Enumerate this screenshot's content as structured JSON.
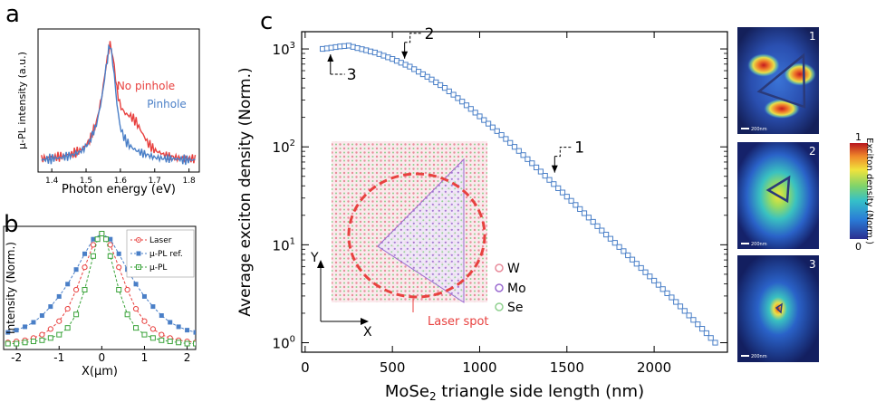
{
  "panel_labels": {
    "a": "a",
    "b": "b",
    "c": "c"
  },
  "chart_data": [
    {
      "panel": "a",
      "type": "line",
      "xlabel": "Photon energy (eV)",
      "ylabel": "µ-PL intensity (a.u.)",
      "xlim": [
        1.36,
        1.83
      ],
      "xticks": [
        "1.4",
        "1.5",
        "1.6",
        "1.7",
        "1.8"
      ],
      "series": [
        {
          "name": "No pinhole",
          "color": "#e8413f",
          "x": [
            1.37,
            1.4,
            1.43,
            1.46,
            1.49,
            1.51,
            1.53,
            1.545,
            1.56,
            1.57,
            1.58,
            1.59,
            1.6,
            1.615,
            1.63,
            1.645,
            1.66,
            1.68,
            1.7,
            1.73,
            1.76,
            1.79,
            1.81
          ],
          "y": [
            0.05,
            0.06,
            0.07,
            0.09,
            0.13,
            0.2,
            0.35,
            0.55,
            0.85,
            1.0,
            0.86,
            0.62,
            0.48,
            0.42,
            0.4,
            0.36,
            0.28,
            0.18,
            0.12,
            0.08,
            0.06,
            0.05,
            0.05
          ]
        },
        {
          "name": "Pinhole",
          "color": "#4a7fc7",
          "x": [
            1.37,
            1.4,
            1.43,
            1.46,
            1.49,
            1.51,
            1.53,
            1.545,
            1.56,
            1.57,
            1.58,
            1.59,
            1.6,
            1.615,
            1.63,
            1.645,
            1.66,
            1.68,
            1.7,
            1.73,
            1.76,
            1.79,
            1.81
          ],
          "y": [
            0.04,
            0.05,
            0.06,
            0.08,
            0.12,
            0.19,
            0.33,
            0.53,
            0.84,
            1.0,
            0.8,
            0.5,
            0.3,
            0.2,
            0.15,
            0.12,
            0.1,
            0.08,
            0.06,
            0.05,
            0.05,
            0.04,
            0.04
          ]
        }
      ]
    },
    {
      "panel": "b",
      "type": "line",
      "xlabel": "X(µm)",
      "ylabel": "Intensity (Norm.)",
      "xlim": [
        -2.3,
        2.2
      ],
      "xticks": [
        "-2",
        "-1",
        "0",
        "1",
        "2"
      ],
      "series": [
        {
          "name": "Laser",
          "color": "#e8413f",
          "marker": "circle-open",
          "x": [
            -2.2,
            -2.0,
            -1.8,
            -1.6,
            -1.4,
            -1.2,
            -1.0,
            -0.8,
            -0.6,
            -0.4,
            -0.2,
            0.0,
            0.2,
            0.4,
            0.6,
            0.8,
            1.0,
            1.2,
            1.4,
            1.6,
            1.8,
            2.0,
            2.2
          ],
          "y": [
            0.03,
            0.04,
            0.05,
            0.07,
            0.1,
            0.15,
            0.22,
            0.33,
            0.5,
            0.7,
            0.9,
            1.0,
            0.9,
            0.7,
            0.5,
            0.33,
            0.22,
            0.15,
            0.1,
            0.07,
            0.05,
            0.04,
            0.03
          ]
        },
        {
          "name": "µ-PL  ref.",
          "color": "#4a7fc7",
          "marker": "square-filled",
          "x": [
            -2.2,
            -2.0,
            -1.8,
            -1.6,
            -1.4,
            -1.2,
            -1.0,
            -0.8,
            -0.6,
            -0.4,
            -0.2,
            0.0,
            0.2,
            0.4,
            0.6,
            0.8,
            1.0,
            1.2,
            1.4,
            1.6,
            1.8,
            2.0,
            2.2
          ],
          "y": [
            0.12,
            0.14,
            0.17,
            0.21,
            0.27,
            0.35,
            0.44,
            0.55,
            0.68,
            0.82,
            0.95,
            1.0,
            0.95,
            0.82,
            0.68,
            0.55,
            0.44,
            0.35,
            0.27,
            0.21,
            0.17,
            0.14,
            0.12
          ]
        },
        {
          "name": "µ-PL",
          "color": "#3aa33a",
          "marker": "square-open",
          "x": [
            -2.2,
            -2.0,
            -1.8,
            -1.6,
            -1.4,
            -1.2,
            -1.0,
            -0.8,
            -0.6,
            -0.4,
            -0.2,
            -0.1,
            0.0,
            0.1,
            0.2,
            0.4,
            0.6,
            0.8,
            1.0,
            1.2,
            1.4,
            1.6,
            1.8,
            2.0,
            2.2
          ],
          "y": [
            0.02,
            0.02,
            0.03,
            0.04,
            0.05,
            0.07,
            0.1,
            0.16,
            0.28,
            0.5,
            0.8,
            0.95,
            1.0,
            0.95,
            0.8,
            0.5,
            0.28,
            0.16,
            0.1,
            0.07,
            0.05,
            0.04,
            0.03,
            0.02,
            0.02
          ]
        }
      ]
    },
    {
      "panel": "c",
      "type": "scatter",
      "xlabel_main": "MoSe",
      "xlabel_sub": "2",
      "xlabel_rest": " triangle side length (nm)",
      "ylabel": "Average exciton density (Norm.)",
      "yscale": "log",
      "xlim": [
        -20,
        2420
      ],
      "ylim": [
        0.8,
        1500
      ],
      "xticks": [
        {
          "value": 0,
          "label": "0"
        },
        {
          "value": 500,
          "label": "500"
        },
        {
          "value": 1000,
          "label": "1000"
        },
        {
          "value": 1500,
          "label": "1500"
        },
        {
          "value": 2000,
          "label": "2000"
        }
      ],
      "yticks": [
        {
          "value": 1,
          "base": "10",
          "exp": "0"
        },
        {
          "value": 10,
          "base": "10",
          "exp": "1"
        },
        {
          "value": 100,
          "base": "10",
          "exp": "2"
        },
        {
          "value": 1000,
          "base": "10",
          "exp": "3"
        }
      ],
      "color": "#4a7fc7",
      "anchors": {
        "x": [
          100,
          150,
          200,
          250,
          300,
          400,
          500,
          600,
          700,
          800,
          900,
          1000,
          1100,
          1200,
          1300,
          1400,
          1500,
          1600,
          1700,
          1800,
          1900,
          2000,
          2100,
          2200,
          2300,
          2350
        ],
        "y": [
          1000,
          1030,
          1060,
          1080,
          1020,
          920,
          790,
          660,
          520,
          400,
          290,
          205,
          145,
          100,
          68,
          46,
          31,
          21,
          14,
          9.5,
          6.4,
          4.3,
          2.9,
          1.9,
          1.25,
          1.0
        ]
      },
      "annotations": [
        {
          "label": "1",
          "x": 1430,
          "y": 48
        },
        {
          "label": "2",
          "x": 570,
          "y": 700
        },
        {
          "label": "3",
          "x": 145,
          "y": 1000
        }
      ],
      "inset": {
        "legend": [
          "W",
          "Mo",
          "Se"
        ],
        "legend_colors": [
          "#e88a9a",
          "#9a6ad0",
          "#8fd08f"
        ],
        "laser_label": "Laser spot",
        "axis_x": "X",
        "axis_y": "Y"
      }
    }
  ],
  "maps": [
    {
      "label": "1",
      "scalebar": "200nm"
    },
    {
      "label": "2",
      "scalebar": "200nm"
    },
    {
      "label": "3",
      "scalebar": "200nm"
    }
  ],
  "colorbar": {
    "title": "Exciton density (Norm.)",
    "max": "1",
    "min": "0"
  }
}
